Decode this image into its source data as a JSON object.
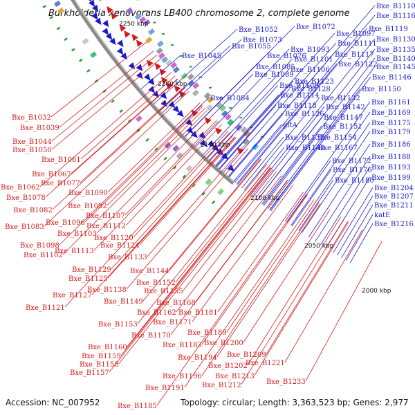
{
  "title": "Burkholderia xenovorans LB400 chromosome 2, complete genome",
  "footer": {
    "accession": "Accession: NC_007952",
    "summary": "Topology: circular; Length: 3,363,523 bp; Genes: 2,977"
  },
  "colors": {
    "forward_strand": "#1a1acc",
    "reverse_strand": "#d61a1a",
    "backbone": "#8a8a8a",
    "tick": "#2a9a2a"
  },
  "scale_labels": [
    "2250 kbp",
    "2200 kbp",
    "2150 kbp",
    "2100 kbp",
    "2050 kbp",
    "2000 kbp"
  ],
  "blue_labels": [
    "Bxe_B1110",
    "Bxe_B1116",
    "Bxe_B1119",
    "Bxe_B1130",
    "Bxe_B1135",
    "Bxe_B1140",
    "Bxe_B1145",
    "Bxe_B1146",
    "Bxe_B1150",
    "Bxe_B1161",
    "Bxe_B1169",
    "Bxe_B1175",
    "Bxe_B1179",
    "Bxe_B1186",
    "Bxe_B1188",
    "Bxe_B1193",
    "Bxe_B1199",
    "Bxe_B1204",
    "Bxe_B1207",
    "Bxe_B1211",
    "katE",
    "Bxe_B1216",
    "Bxe_B1052",
    "Bxe_B1072",
    "Bxe_B1097",
    "Bxe_B1073",
    "Bxe_B1111",
    "Bxe_B1055",
    "Bxe_B1093",
    "Bxe_B1045",
    "Bxe_B1076",
    "Bxe_B1101",
    "Bxe_B1117",
    "Bxe_B1122",
    "Bxe_B1085",
    "Bxe_B1106",
    "Bxe_B1089",
    "Bxe_B1123",
    "Bxe_B1109",
    "Bxe_B1128",
    "Bxe_B1084",
    "Bxe_B1114",
    "Bxe_B1132",
    "Bxe_B1118",
    "Bxe_B1142",
    "Bxe_B1126",
    "Bxe_B1147",
    "gltA",
    "Bxe_B1151",
    "Bxe_B1137",
    "Bxe_B1154",
    "Bxe_B1148",
    "Bxe_B1167",
    "Bxe_B1172",
    "Bxe_B1176",
    "Bxe_B1180"
  ],
  "red_labels": [
    "Bxe_B1032",
    "Bxe_B1039",
    "Bxe_B1044",
    "Bxe_B1050",
    "Bxe_B1061",
    "Bxe_B1067",
    "Bxe_B1077",
    "Bxe_B1062",
    "Bxe_B1090",
    "Bxe_B1078",
    "Bxe_B1092",
    "Bxe_B1082",
    "Bxe_B1107",
    "Bxe_B1096",
    "Bxe_B1083",
    "Bxe_B1112",
    "Bxe_B1103",
    "Bxe_B1120",
    "Bxe_B1098",
    "Bxe_B1124",
    "Bxe_B1113",
    "Bxe_B1102",
    "Bxe_B1133",
    "Bxe_B1129",
    "Bxe_B1144",
    "Bxe_B1125",
    "Bxe_B1152",
    "Bxe_B1138",
    "Bxe_B1155",
    "Bxe_B1127",
    "Bxe_B1149",
    "Bxe_B1168",
    "Bxe_B1121",
    "Bxe_B1162",
    "Bxe_B1181",
    "Bxe_B1171",
    "Bxe_B1153",
    "Bxe_B1189",
    "Bxe_B1170",
    "Bxe_B1183",
    "Bxe_B1200",
    "Bxe_B1160",
    "Bxe_B1159",
    "Bxe_B1209",
    "Bxe_B1194",
    "Bxe_B1158",
    "Bxe_B1202",
    "Bxe_B1221",
    "Bxe_B1157",
    "Bxe_B1213",
    "Bxe_B1196",
    "Bxe_B1212",
    "Bxe_B1233",
    "Bxe_B1191",
    "Bxe_B1185"
  ]
}
